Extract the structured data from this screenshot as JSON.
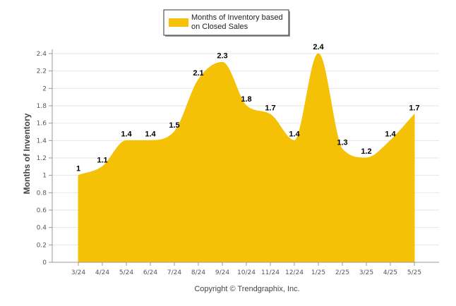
{
  "chart_data": {
    "type": "area",
    "categories": [
      "3/24",
      "4/24",
      "5/24",
      "6/24",
      "7/24",
      "8/24",
      "9/24",
      "10/24",
      "11/24",
      "12/24",
      "1/25",
      "2/25",
      "3/25",
      "4/25",
      "5/25"
    ],
    "series": [
      {
        "name": "Months of Inventory based on Closed Sales",
        "values": [
          1,
          1.1,
          1.4,
          1.4,
          1.5,
          2.1,
          2.3,
          1.8,
          1.7,
          1.4,
          2.4,
          1.3,
          1.2,
          1.4,
          1.7
        ]
      }
    ],
    "data_labels": [
      "1",
      "1.1",
      "1.4",
      "1.4",
      "1.5",
      "2.1",
      "2.3",
      "1.8",
      "1.7",
      "1.4",
      "2.4",
      "1.3",
      "1.2",
      "1.4",
      "1.7"
    ],
    "ylabel": "Months of Inventory",
    "xlabel": "",
    "ylim": [
      0,
      2.4
    ],
    "yticks": [
      0,
      0.2,
      0.4,
      0.6,
      0.8,
      1,
      1.2,
      1.4,
      1.6,
      1.8,
      2,
      2.2,
      2.4
    ],
    "ytick_labels": [
      "0",
      "0.2",
      "0.4",
      "0.6",
      "0.8",
      "1",
      "1.2",
      "1.4",
      "1.6",
      "1.8",
      "2",
      "2.2",
      "2.4"
    ],
    "grid": true,
    "legend": "top-center",
    "color": "#F5C106"
  },
  "legend": {
    "line1": "Months of Inventory based",
    "line2": "on Closed Sales"
  },
  "footer": "Copyright © Trendgraphix, Inc."
}
